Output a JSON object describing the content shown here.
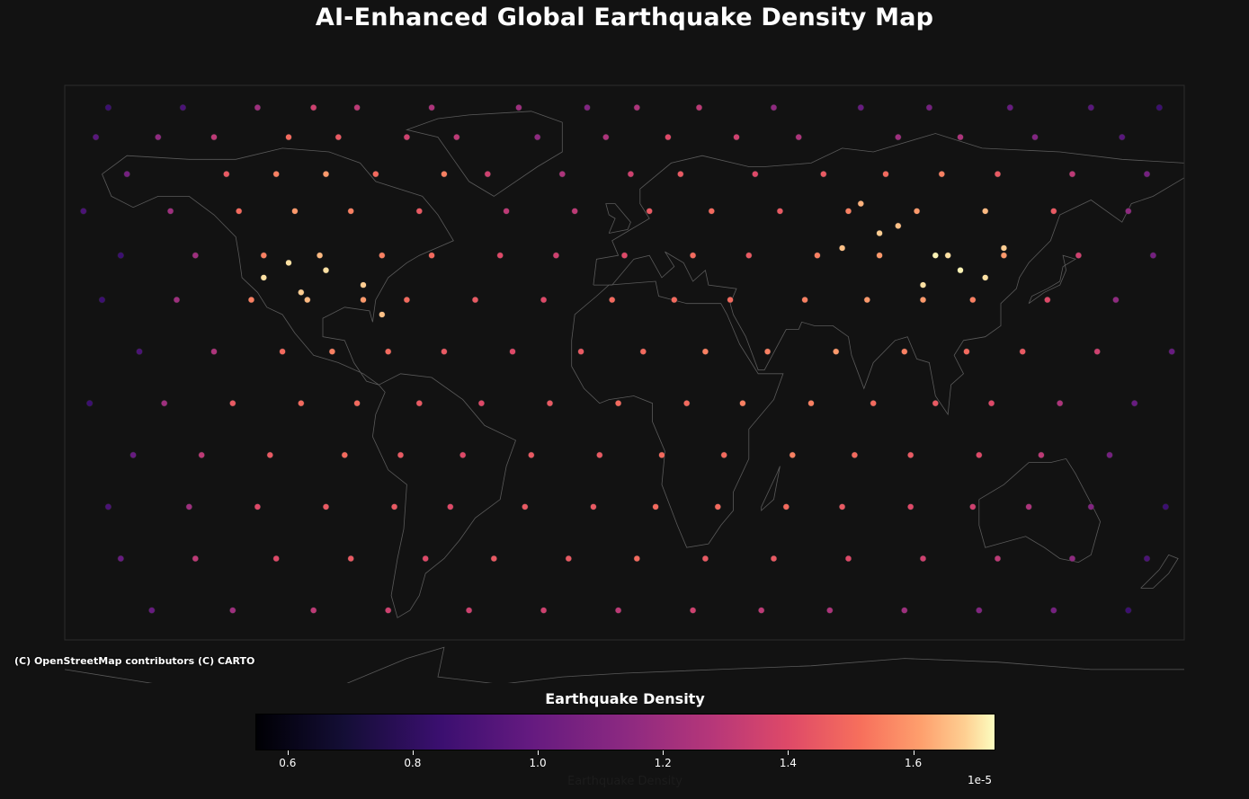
{
  "title": "AI-Enhanced Global Earthquake Density Map",
  "attribution": "(C) OpenStreetMap contributors (C) CARTO",
  "colors": {
    "background": "#121212",
    "land_outline": "#5a5a5a",
    "point_edge": "#2a2a2a",
    "colormap": "magma"
  },
  "colorbar": {
    "title": "Earthquake Density",
    "xlabel": "Earthquake Density",
    "exponent_label": "1e-5",
    "range": [
      0.55,
      1.73
    ],
    "ticks": [
      {
        "value": 0.6,
        "label": "0.6"
      },
      {
        "value": 0.8,
        "label": "0.8"
      },
      {
        "value": 1.0,
        "label": "1.0"
      },
      {
        "value": 1.2,
        "label": "1.2"
      },
      {
        "value": 1.4,
        "label": "1.4"
      },
      {
        "value": 1.6,
        "label": "1.6"
      }
    ]
  },
  "chart_data": {
    "type": "scatter",
    "projection": "plate-carree",
    "xlim": [
      -180,
      180
    ],
    "ylim": [
      -60,
      90
    ],
    "series": [
      {
        "x": [
          -166.0,
          -142.0,
          -118.0,
          -100.0,
          -86.0,
          -62.0,
          -34.0,
          -12.0,
          4.0,
          24.0,
          48.0,
          76.0,
          98.0,
          124.0,
          150.0,
          172.0,
          -170.0,
          -150.0,
          -132.0,
          -108.0,
          -92.0,
          -70.0,
          -54.0,
          -28.0,
          -6.0,
          14.0,
          36.0,
          56.0,
          88.0,
          108.0,
          132.0,
          160.0,
          -160.0,
          -128.0,
          -112.0,
          -96.0,
          -80.0,
          -58.0,
          -44.0,
          -20.0,
          2.0,
          18.0,
          42.0,
          64.0,
          84.0,
          102.0,
          120.0,
          144.0,
          168.0,
          -174.0,
          -146.0,
          -124.0,
          -106.0,
          -88.0,
          -66.0,
          -38.0,
          -16.0,
          8.0,
          28.0,
          50.0,
          72.0,
          94.0,
          116.0,
          138.0,
          162.0,
          -162.0,
          -138.0,
          -116.0,
          -98.0,
          -78.0,
          -62.0,
          -40.0,
          -22.0,
          0.0,
          22.0,
          40.0,
          62.0,
          82.0,
          104.0,
          122.0,
          146.0,
          170.0,
          -168.0,
          -144.0,
          -120.0,
          -102.0,
          -84.0,
          -70.0,
          -48.0,
          -26.0,
          -4.0,
          16.0,
          34.0,
          58.0,
          78.0,
          96.0,
          112.0,
          136.0,
          158.0,
          -156.0,
          -132.0,
          -110.0,
          -94.0,
          -76.0,
          -58.0,
          -36.0,
          -14.0,
          6.0,
          26.0,
          46.0,
          68.0,
          90.0,
          110.0,
          128.0,
          152.0,
          176.0,
          -172.0,
          -148.0,
          -126.0,
          -104.0,
          -86.0,
          -66.0,
          -46.0,
          -24.0,
          -2.0,
          20.0,
          38.0,
          60.0,
          80.0,
          100.0,
          118.0,
          140.0,
          164.0,
          -158.0,
          -136.0,
          -114.0,
          -90.0,
          -72.0,
          -52.0,
          -30.0,
          -8.0,
          12.0,
          32.0,
          54.0,
          74.0,
          92.0,
          114.0,
          134.0,
          156.0,
          -166.0,
          -140.0,
          -118.0,
          -96.0,
          -74.0,
          -56.0,
          -32.0,
          -10.0,
          10.0,
          30.0,
          52.0,
          70.0,
          92.0,
          112.0,
          130.0,
          150.0,
          174.0,
          -162.0,
          -138.0,
          -112.0,
          -88.0,
          -64.0,
          -42.0,
          -18.0,
          4.0,
          26.0,
          48.0,
          72.0,
          96.0,
          120.0,
          144.0,
          168.0,
          -152.0,
          -126.0,
          -100.0,
          -76.0,
          -50.0,
          -26.0,
          -2.0,
          22.0,
          44.0,
          66.0,
          90.0,
          114.0,
          138.0,
          162.0,
          -116.0,
          -108.0,
          -104.0,
          -96.0,
          -84.0,
          -78.0,
          70.0,
          82.0,
          100.0,
          108.0,
          116.0,
          122.0,
          88.0,
          76.0,
          96.0
        ],
        "y": [
          84,
          84,
          84,
          84,
          84,
          84,
          84,
          84,
          84,
          84,
          84,
          84,
          84,
          84,
          84,
          84,
          76,
          76,
          76,
          76,
          76,
          76,
          76,
          76,
          76,
          76,
          76,
          76,
          76,
          76,
          76,
          76,
          66,
          66,
          66,
          66,
          66,
          66,
          66,
          66,
          66,
          66,
          66,
          66,
          66,
          66,
          66,
          66,
          66,
          56,
          56,
          56,
          56,
          56,
          56,
          56,
          56,
          56,
          56,
          56,
          56,
          56,
          56,
          56,
          56,
          44,
          44,
          44,
          44,
          44,
          44,
          44,
          44,
          44,
          44,
          44,
          44,
          44,
          44,
          44,
          44,
          44,
          32,
          32,
          32,
          32,
          32,
          32,
          32,
          32,
          32,
          32,
          32,
          32,
          32,
          32,
          32,
          32,
          32,
          18,
          18,
          18,
          18,
          18,
          18,
          18,
          18,
          18,
          18,
          18,
          18,
          18,
          18,
          18,
          18,
          18,
          4,
          4,
          4,
          4,
          4,
          4,
          4,
          4,
          4,
          4,
          4,
          4,
          4,
          4,
          4,
          4,
          4,
          -10,
          -10,
          -10,
          -10,
          -10,
          -10,
          -10,
          -10,
          -10,
          -10,
          -10,
          -10,
          -10,
          -10,
          -10,
          -10,
          -24,
          -24,
          -24,
          -24,
          -24,
          -24,
          -24,
          -24,
          -24,
          -24,
          -24,
          -24,
          -24,
          -24,
          -24,
          -24,
          -24,
          -38,
          -38,
          -38,
          -38,
          -38,
          -38,
          -38,
          -38,
          -38,
          -38,
          -38,
          -38,
          -38,
          -38,
          -38,
          -52,
          -52,
          -52,
          -52,
          -52,
          -52,
          -52,
          -52,
          -52,
          -52,
          -52,
          -52,
          -52,
          -52,
          38,
          42,
          34,
          40,
          36,
          28,
          46,
          50,
          44,
          40,
          38,
          46,
          52,
          58,
          36
        ],
        "values": [
          0.85,
          0.9,
          1.2,
          1.35,
          1.3,
          1.25,
          1.2,
          1.1,
          1.25,
          1.3,
          1.15,
          1.0,
          1.05,
          1.0,
          0.95,
          0.85,
          0.95,
          1.15,
          1.3,
          1.5,
          1.45,
          1.35,
          1.3,
          1.15,
          1.25,
          1.4,
          1.35,
          1.25,
          1.2,
          1.25,
          1.1,
          0.95,
          1.05,
          1.45,
          1.55,
          1.6,
          1.5,
          1.55,
          1.35,
          1.25,
          1.35,
          1.45,
          1.4,
          1.45,
          1.5,
          1.55,
          1.45,
          1.3,
          1.05,
          0.9,
          1.2,
          1.5,
          1.6,
          1.55,
          1.45,
          1.3,
          1.3,
          1.45,
          1.5,
          1.45,
          1.55,
          1.6,
          1.65,
          1.45,
          1.15,
          0.85,
          1.2,
          1.55,
          1.65,
          1.55,
          1.5,
          1.4,
          1.35,
          1.4,
          1.5,
          1.45,
          1.55,
          1.6,
          1.7,
          1.6,
          1.35,
          1.05,
          0.85,
          1.2,
          1.55,
          1.65,
          1.6,
          1.5,
          1.45,
          1.4,
          1.5,
          1.5,
          1.5,
          1.55,
          1.6,
          1.6,
          1.55,
          1.4,
          1.15,
          0.9,
          1.25,
          1.5,
          1.55,
          1.5,
          1.45,
          1.4,
          1.45,
          1.5,
          1.55,
          1.55,
          1.6,
          1.55,
          1.5,
          1.45,
          1.35,
          1.0,
          0.85,
          1.2,
          1.45,
          1.5,
          1.5,
          1.45,
          1.4,
          1.45,
          1.5,
          1.5,
          1.55,
          1.55,
          1.5,
          1.45,
          1.4,
          1.25,
          1.0,
          1.0,
          1.3,
          1.45,
          1.5,
          1.45,
          1.4,
          1.45,
          1.45,
          1.5,
          1.5,
          1.55,
          1.5,
          1.45,
          1.4,
          1.3,
          1.05,
          0.9,
          1.2,
          1.4,
          1.45,
          1.45,
          1.4,
          1.45,
          1.45,
          1.5,
          1.5,
          1.5,
          1.45,
          1.4,
          1.35,
          1.25,
          1.1,
          0.85,
          1.0,
          1.3,
          1.4,
          1.45,
          1.4,
          1.45,
          1.45,
          1.5,
          1.45,
          1.45,
          1.4,
          1.35,
          1.3,
          1.15,
          0.9,
          1.0,
          1.2,
          1.3,
          1.35,
          1.35,
          1.35,
          1.3,
          1.35,
          1.3,
          1.25,
          1.2,
          1.1,
          1.05,
          0.85,
          1.7,
          1.7,
          1.68,
          1.7,
          1.68,
          1.66,
          1.66,
          1.68,
          1.72,
          1.72,
          1.7,
          1.68,
          1.66,
          1.64,
          1.7
        ]
      }
    ]
  }
}
